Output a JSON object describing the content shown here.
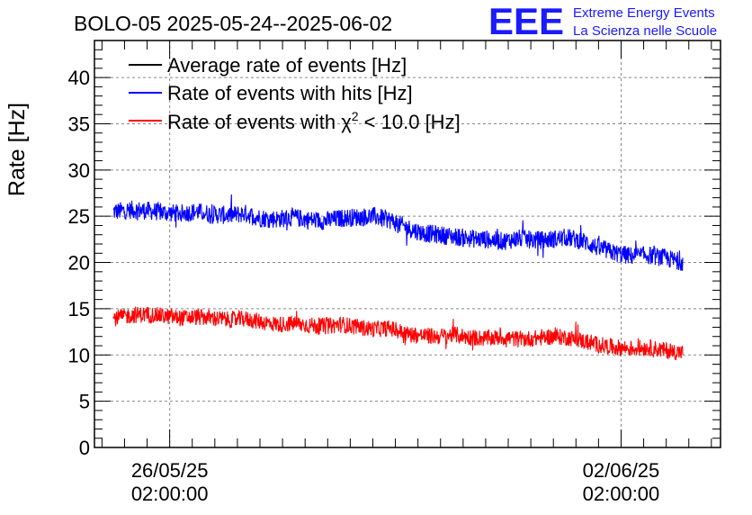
{
  "header": {
    "title": "BOLO-05 2025-05-24--2025-06-02",
    "logo_text": "EEE",
    "org_line1": "Extreme Energy Events",
    "org_line2": "La Scienza nelle Scuole"
  },
  "colors": {
    "average": "#000000",
    "hits": "#0000ff",
    "chi2": "#ff0000",
    "logo": "#1a1aff",
    "grid": "#888888"
  },
  "chart_data": {
    "type": "line",
    "ylabel": "Rate [Hz]",
    "xlabel": "",
    "ylim": [
      0,
      44
    ],
    "yticks": [
      0,
      5,
      10,
      15,
      20,
      25,
      30,
      35,
      40
    ],
    "xlim": [
      "2025-05-24 22:00",
      "2025-06-03 15:00"
    ],
    "xticks": [
      {
        "x": "2025-05-26 02:00",
        "label_date": "26/05/25",
        "label_time": "02:00:00"
      },
      {
        "x": "2025-06-02 02:00",
        "label_date": "02/06/25",
        "label_time": "02:00:00"
      }
    ],
    "grid": true,
    "legend_position": "top-left",
    "series": [
      {
        "name": "Average rate of events [Hz]",
        "legend_label": "Average rate of events [Hz]",
        "color": "#000000",
        "x": [],
        "y": []
      },
      {
        "name": "Rate of events with hits [Hz]",
        "legend_label": "Rate of events with hits [Hz]",
        "color": "#0000ff",
        "x": [
          "2025-05-25 06:00",
          "2025-05-25 12:00",
          "2025-05-25 18:00",
          "2025-05-26 00:00",
          "2025-05-26 06:00",
          "2025-05-26 12:00",
          "2025-05-26 18:00",
          "2025-05-27 00:00",
          "2025-05-27 06:00",
          "2025-05-27 12:00",
          "2025-05-27 18:00",
          "2025-05-28 00:00",
          "2025-05-28 06:00",
          "2025-05-28 12:00",
          "2025-05-28 18:00",
          "2025-05-29 00:00",
          "2025-05-29 06:00",
          "2025-05-29 12:00",
          "2025-05-29 18:00",
          "2025-05-30 00:00",
          "2025-05-30 06:00",
          "2025-05-30 12:00",
          "2025-05-30 18:00",
          "2025-05-31 00:00",
          "2025-05-31 06:00",
          "2025-05-31 12:00",
          "2025-05-31 18:00",
          "2025-06-01 00:00",
          "2025-06-01 06:00",
          "2025-06-01 12:00",
          "2025-06-01 18:00",
          "2025-06-02 00:00",
          "2025-06-02 06:00",
          "2025-06-02 12:00",
          "2025-06-02 18:00",
          "2025-06-03 00:00"
        ],
        "y": [
          25.5,
          25.7,
          25.6,
          25.4,
          25.3,
          25.5,
          25.2,
          25.1,
          25.3,
          24.8,
          24.7,
          24.9,
          24.6,
          24.5,
          24.8,
          24.9,
          25.0,
          24.6,
          23.8,
          23.2,
          23.0,
          22.8,
          22.6,
          22.5,
          22.3,
          22.6,
          22.4,
          22.5,
          22.7,
          22.3,
          21.5,
          21.0,
          20.7,
          20.8,
          20.5,
          20.1
        ],
        "noise": 1.0
      },
      {
        "name": "Rate of events with χ² < 10.0 [Hz]",
        "legend_label": "Rate of events with χ",
        "legend_sup": "2",
        "legend_rest": " < 10.0 [Hz]",
        "color": "#ff0000",
        "x": [
          "2025-05-25 06:00",
          "2025-05-25 12:00",
          "2025-05-25 18:00",
          "2025-05-26 00:00",
          "2025-05-26 06:00",
          "2025-05-26 12:00",
          "2025-05-26 18:00",
          "2025-05-27 00:00",
          "2025-05-27 06:00",
          "2025-05-27 12:00",
          "2025-05-27 18:00",
          "2025-05-28 00:00",
          "2025-05-28 06:00",
          "2025-05-28 12:00",
          "2025-05-28 18:00",
          "2025-05-29 00:00",
          "2025-05-29 06:00",
          "2025-05-29 12:00",
          "2025-05-29 18:00",
          "2025-05-30 00:00",
          "2025-05-30 06:00",
          "2025-05-30 12:00",
          "2025-05-30 18:00",
          "2025-05-31 00:00",
          "2025-05-31 06:00",
          "2025-05-31 12:00",
          "2025-05-31 18:00",
          "2025-06-01 00:00",
          "2025-06-01 06:00",
          "2025-06-01 12:00",
          "2025-06-01 18:00",
          "2025-06-02 00:00",
          "2025-06-02 06:00",
          "2025-06-02 12:00",
          "2025-06-02 18:00",
          "2025-06-03 00:00"
        ],
        "y": [
          14.0,
          14.3,
          14.4,
          14.2,
          14.0,
          14.1,
          14.0,
          13.8,
          13.9,
          13.6,
          13.3,
          13.4,
          13.2,
          13.1,
          13.3,
          13.0,
          12.8,
          12.9,
          12.3,
          12.1,
          12.0,
          12.2,
          11.9,
          11.8,
          11.9,
          11.7,
          11.8,
          12.0,
          11.9,
          11.5,
          11.1,
          10.8,
          10.7,
          10.8,
          10.5,
          10.3
        ],
        "noise": 0.9
      }
    ]
  }
}
